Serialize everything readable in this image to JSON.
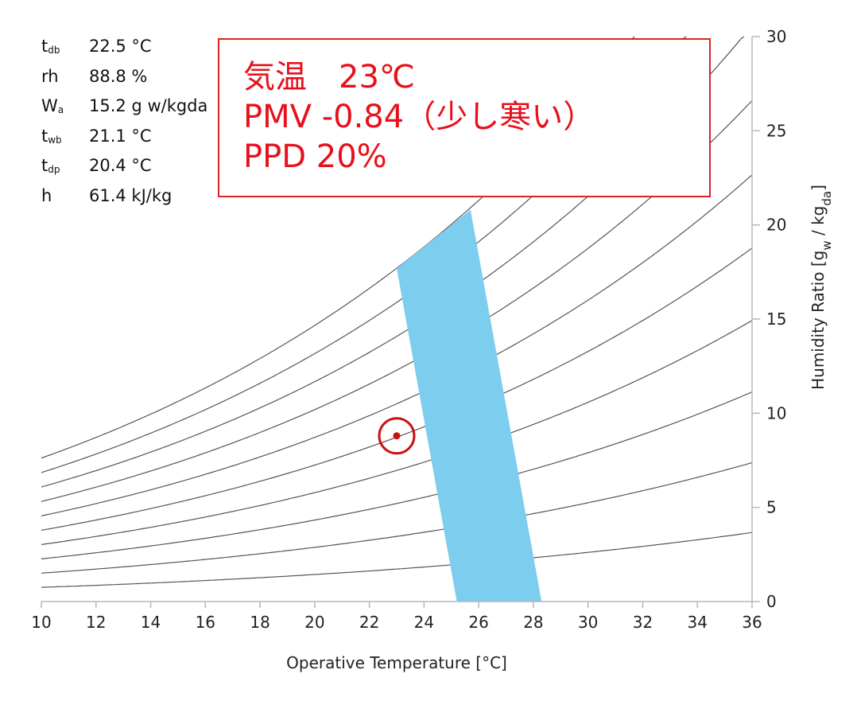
{
  "readout": [
    {
      "symbol": "t",
      "sub": "db",
      "value": "22.5 °C"
    },
    {
      "symbol": "rh",
      "sub": "",
      "value": "88.8 %"
    },
    {
      "symbol": "W",
      "sub": "a",
      "value": "15.2 g w/kgda"
    },
    {
      "symbol": "t",
      "sub": "wb",
      "value": "21.1 °C"
    },
    {
      "symbol": "t",
      "sub": "dp",
      "value": "20.4 °C"
    },
    {
      "symbol": "h",
      "sub": "",
      "value": "61.4 kJ/kg"
    }
  ],
  "callout": {
    "line1": "気温　23℃",
    "line2": "PMV -0.84（少し寒い）",
    "line3": "PPD 20%"
  },
  "colors": {
    "comfort_zone": "#7ccdee",
    "marker": "#cc1111",
    "callout": "#e8101a",
    "curves": "#555555"
  },
  "chart_data": {
    "type": "line",
    "xlabel": "Operative Temperature [°C]",
    "ylabel": "Humidity Ratio [g_w / kg_da]",
    "xlim": [
      10,
      36
    ],
    "ylim": [
      0,
      30
    ],
    "xticks": [
      10,
      12,
      14,
      16,
      18,
      20,
      22,
      24,
      26,
      28,
      30,
      32,
      34,
      36
    ],
    "yticks": [
      0,
      5,
      10,
      15,
      20,
      25,
      30
    ],
    "grid": false,
    "rh_curves_percent": [
      10,
      20,
      30,
      40,
      50,
      60,
      70,
      80,
      90,
      100
    ],
    "comfort_zone": [
      [
        23.0,
        17.7
      ],
      [
        25.7,
        20.8
      ],
      [
        28.3,
        0
      ],
      [
        25.2,
        0
      ]
    ],
    "point": {
      "x": 23.0,
      "y": 8.8
    }
  }
}
